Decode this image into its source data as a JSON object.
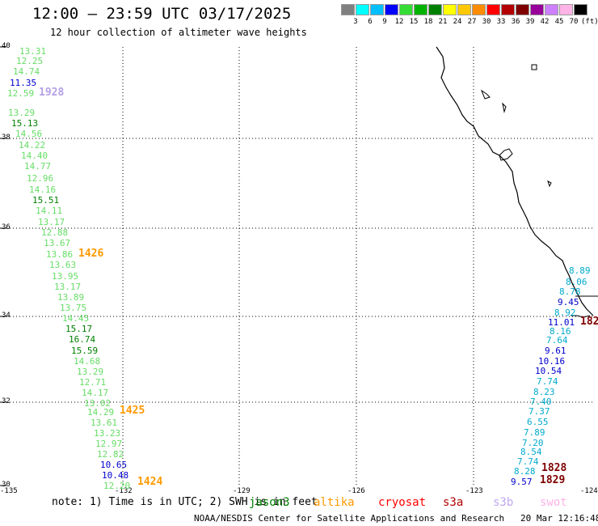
{
  "title": "12:00 – 23:59 UTC 03/17/2025",
  "subtitle": "12 hour collection of altimeter wave heights",
  "legend": {
    "colors": [
      "#808080",
      "#00ffff",
      "#00bfff",
      "#0000ff",
      "#33dd33",
      "#00b300",
      "#008000",
      "#ffff00",
      "#ffc800",
      "#ff8c00",
      "#ff0000",
      "#b30000",
      "#7f0000",
      "#990099",
      "#cc80ff",
      "#ffb3e6",
      "#000000"
    ],
    "labels": [
      "3",
      "6",
      "9",
      "12",
      "15",
      "18",
      "21",
      "24",
      "27",
      "30",
      "33",
      "36",
      "39",
      "42",
      "45",
      "70",
      "(ft)"
    ]
  },
  "axes": {
    "lat_labels": [
      "40",
      "38",
      "36",
      "34",
      "32",
      "30"
    ],
    "lon_labels": [
      "-135",
      "-132",
      "-129",
      "-126",
      "-123",
      "-124"
    ]
  },
  "tracks": [
    {
      "sat": "jason",
      "color": "#66dd66",
      "pass_label": "1928",
      "pass_color": "#b3a0e6"
    },
    {
      "sat": "altika",
      "pass_label": "1426",
      "pass_color": "#ff9900"
    }
  ],
  "track_points": [
    {
      "v": "13.31",
      "c": "#66dd66"
    },
    {
      "v": "12.25",
      "c": "#66dd66"
    },
    {
      "v": "14.74",
      "c": "#66dd66"
    },
    {
      "v": "11.35",
      "c": "#0000cc"
    },
    {
      "v": "12.59",
      "c": "#66dd66"
    },
    {
      "v": "13.29",
      "c": "#66dd66"
    },
    {
      "v": "15.13",
      "c": "#008000"
    },
    {
      "v": "14.56",
      "c": "#66dd66"
    },
    {
      "v": "14.22",
      "c": "#66dd66"
    },
    {
      "v": "14.40",
      "c": "#66dd66"
    },
    {
      "v": "14.77",
      "c": "#66dd66"
    },
    {
      "v": "12.96",
      "c": "#66dd66"
    },
    {
      "v": "14.16",
      "c": "#66dd66"
    },
    {
      "v": "15.51",
      "c": "#008000"
    },
    {
      "v": "14.11",
      "c": "#66dd66"
    },
    {
      "v": "13.17",
      "c": "#66dd66"
    },
    {
      "v": "12.88",
      "c": "#66dd66"
    },
    {
      "v": "13.67",
      "c": "#66dd66"
    },
    {
      "v": "13.86",
      "c": "#66dd66"
    },
    {
      "v": "13.63",
      "c": "#66dd66"
    },
    {
      "v": "13.95",
      "c": "#66dd66"
    },
    {
      "v": "13.17",
      "c": "#66dd66"
    },
    {
      "v": "13.89",
      "c": "#66dd66"
    },
    {
      "v": "13.75",
      "c": "#66dd66"
    },
    {
      "v": "14.45",
      "c": "#66dd66"
    },
    {
      "v": "15.17",
      "c": "#008000"
    },
    {
      "v": "16.74",
      "c": "#008000"
    },
    {
      "v": "15.59",
      "c": "#008000"
    },
    {
      "v": "14.68",
      "c": "#66dd66"
    },
    {
      "v": "13.29",
      "c": "#66dd66"
    },
    {
      "v": "12.71",
      "c": "#66dd66"
    },
    {
      "v": "14.17",
      "c": "#66dd66"
    },
    {
      "v": "13.02",
      "c": "#66dd66"
    },
    {
      "v": "14.29",
      "c": "#66dd66"
    },
    {
      "v": "13.61",
      "c": "#66dd66"
    },
    {
      "v": "13.23",
      "c": "#66dd66"
    },
    {
      "v": "12.97",
      "c": "#66dd66"
    },
    {
      "v": "12.82",
      "c": "#66dd66"
    },
    {
      "v": "10.65",
      "c": "#0000cc"
    },
    {
      "v": "10.48",
      "c": "#0000cc"
    },
    {
      "v": "12.20",
      "c": "#66dd66"
    }
  ],
  "pass_labels": [
    {
      "t": "1928",
      "c": "#b3a0e6"
    },
    {
      "t": "1426",
      "c": "#ff9900"
    },
    {
      "t": "1425",
      "c": "#ff9900"
    },
    {
      "t": "1424",
      "c": "#ff9900"
    },
    {
      "t": "182",
      "c": "#7f0000"
    },
    {
      "t": "1828",
      "c": "#7f0000"
    },
    {
      "t": "1829",
      "c": "#7f0000"
    }
  ],
  "coastal_points": [
    {
      "v": "8.89",
      "c": "#00aacc"
    },
    {
      "v": "8.06",
      "c": "#00aacc"
    },
    {
      "v": "8.78",
      "c": "#00aacc"
    },
    {
      "v": "9.45",
      "c": "#0000cc"
    },
    {
      "v": "8.92",
      "c": "#00aacc"
    },
    {
      "v": "11.01",
      "c": "#0000cc"
    },
    {
      "v": "8.16",
      "c": "#00aacc"
    },
    {
      "v": "7.64",
      "c": "#00aacc"
    },
    {
      "v": "9.61",
      "c": "#0000cc"
    },
    {
      "v": "10.16",
      "c": "#0000cc"
    },
    {
      "v": "10.54",
      "c": "#0000cc"
    },
    {
      "v": "7.74",
      "c": "#00aacc"
    },
    {
      "v": "8.23",
      "c": "#00aacc"
    },
    {
      "v": "7.40",
      "c": "#00aacc"
    },
    {
      "v": "7.37",
      "c": "#00aacc"
    },
    {
      "v": "6.55",
      "c": "#00aacc"
    },
    {
      "v": "7.89",
      "c": "#00aacc"
    },
    {
      "v": "7.20",
      "c": "#00aacc"
    },
    {
      "v": "8.54",
      "c": "#00aacc"
    },
    {
      "v": "7.74",
      "c": "#00aacc"
    },
    {
      "v": "8.28",
      "c": "#00aacc"
    },
    {
      "v": "9.57",
      "c": "#0000cc"
    }
  ],
  "note": "note: 1) Time is in UTC; 2) SWH is in feet",
  "satellites": [
    {
      "name": "jason3",
      "c": "#008000"
    },
    {
      "name": "altika",
      "c": "#ff9900"
    },
    {
      "name": "cryosat",
      "c": "#ff0000"
    },
    {
      "name": "s3a",
      "c": "#b30000"
    },
    {
      "name": "s3b",
      "c": "#c0a8f0"
    },
    {
      "name": "swot",
      "c": "#ffb3e6"
    }
  ],
  "footer": "NOAA/NESDIS Center for Satellite Applications and Research   20 Mar 12:16:48 UTC 2025"
}
